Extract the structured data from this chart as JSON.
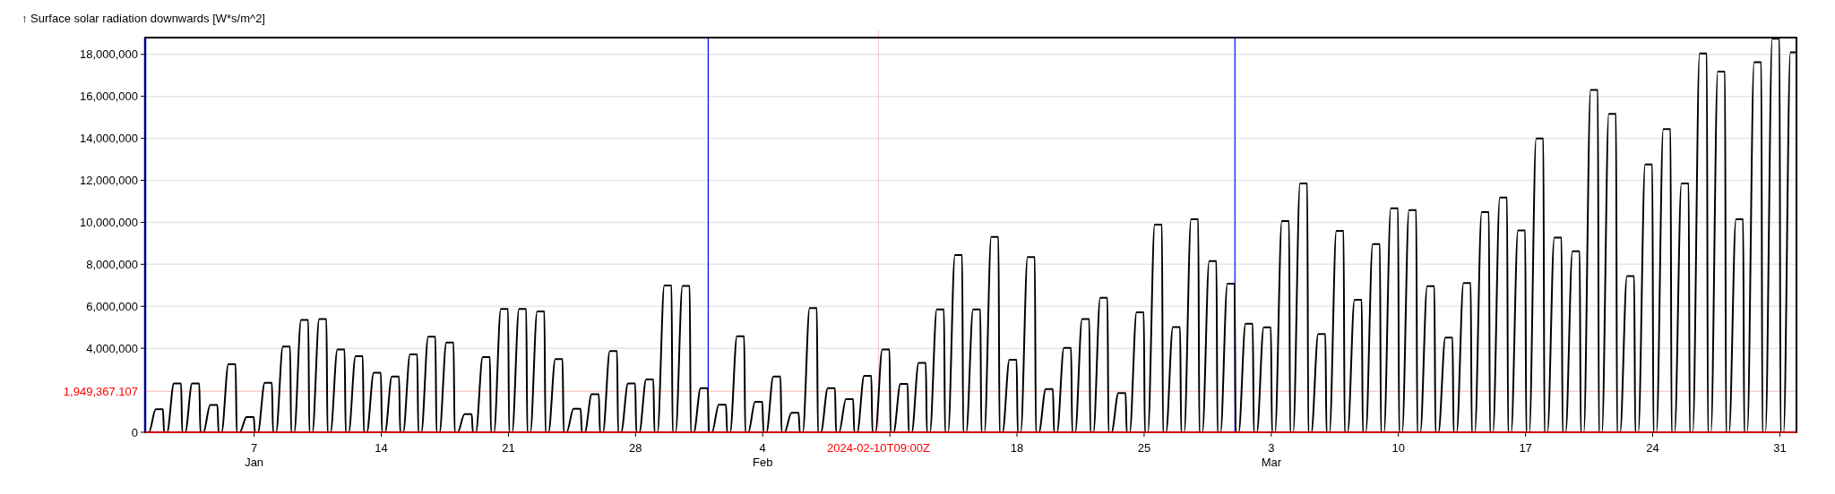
{
  "chart_data": {
    "type": "line",
    "ylabel": "↑ Surface solar radiation downwards [W*s/m^2]",
    "xlim": [
      "2024-01-01T00:00",
      "2024-03-31T22:00"
    ],
    "ylim": [
      0,
      18800000
    ],
    "yticks": [
      {
        "value": 0,
        "label": "0"
      },
      {
        "value": 4000000,
        "label": "4,000,000"
      },
      {
        "value": 6000000,
        "label": "6,000,000"
      },
      {
        "value": 8000000,
        "label": "8,000,000"
      },
      {
        "value": 10000000,
        "label": "10,000,000"
      },
      {
        "value": 12000000,
        "label": "12,000,000"
      },
      {
        "value": 14000000,
        "label": "14,000,000"
      },
      {
        "value": 16000000,
        "label": "16,000,000"
      },
      {
        "value": 18000000,
        "label": "18,000,000"
      }
    ],
    "xticks": [
      {
        "value": "2024-01-07",
        "label": "7\nJan"
      },
      {
        "value": "2024-01-14",
        "label": "14"
      },
      {
        "value": "2024-01-21",
        "label": "21"
      },
      {
        "value": "2024-01-28",
        "label": "28"
      },
      {
        "value": "2024-02-04",
        "label": "4\nFeb"
      },
      {
        "value": "2024-02-11",
        "label": null
      },
      {
        "value": "2024-02-18",
        "label": "18"
      },
      {
        "value": "2024-02-25",
        "label": "25"
      },
      {
        "value": "2024-03-03",
        "label": "3\nMar"
      },
      {
        "value": "2024-03-10",
        "label": "10"
      },
      {
        "value": "2024-03-17",
        "label": "17"
      },
      {
        "value": "2024-03-24",
        "label": "24"
      },
      {
        "value": "2024-03-31",
        "label": "31"
      }
    ],
    "grid": "y",
    "line_style": "solid",
    "marker": "none",
    "ref_lines": [
      {
        "axis": "y",
        "value": 1949367.107,
        "label": "1,949,367.107",
        "color": "#ff0000"
      },
      {
        "axis": "x",
        "value": "2024-02-10T09:00",
        "label": "2024-02-10T09:00Z",
        "color": "#ff0000"
      },
      {
        "axis": "x",
        "value": "2024-02-01",
        "color": "#0000ff"
      },
      {
        "axis": "x",
        "value": "2024-03-01",
        "color": "#0000ff"
      }
    ],
    "series": [
      {
        "color": "#000000",
        "x": [
          "2024-01-01T00:00",
          "2024-01-01T05:00",
          "2024-01-01T14:00",
          "2024-01-01T23:30",
          "2024-01-02T01:00",
          "2024-01-02T05:00",
          "2024-01-02T14:00",
          "2024-01-02T23:30",
          "2024-01-03T01:00",
          "2024-01-03T05:00",
          "2024-01-03T14:00",
          "2024-01-03T23:30",
          "2024-01-04T01:00",
          "2024-01-04T05:00",
          "2024-01-04T14:00",
          "2024-01-04T23:30",
          "2024-01-05T01:00",
          "2024-01-05T05:00",
          "2024-01-05T14:00",
          "2024-01-05T23:30",
          "2024-01-06T01:00",
          "2024-01-06T05:00",
          "2024-01-06T14:00",
          "2024-01-06T23:30",
          "2024-01-07T01:00",
          "2024-01-07T05:00",
          "2024-01-07T14:00",
          "2024-01-07T23:30",
          "2024-01-08T01:00",
          "2024-01-08T05:00",
          "2024-01-08T14:00",
          "2024-01-08T23:30",
          "2024-01-09T01:00",
          "2024-01-09T05:00",
          "2024-01-09T14:00",
          "2024-01-09T23:30",
          "2024-01-10T01:00",
          "2024-01-10T05:00",
          "2024-01-10T14:00",
          "2024-01-10T23:30",
          "2024-01-11T01:00",
          "2024-01-11T05:00",
          "2024-01-11T14:00",
          "2024-01-11T23:30",
          "2024-01-12T01:00",
          "2024-01-12T05:00",
          "2024-01-12T14:00",
          "2024-01-12T23:30",
          "2024-01-13T01:00",
          "2024-01-13T05:00",
          "2024-01-13T14:00",
          "2024-01-13T23:30",
          "2024-01-14T01:00",
          "2024-01-14T05:00",
          "2024-01-14T14:00",
          "2024-01-14T23:30",
          "2024-01-15T01:00",
          "2024-01-15T05:00",
          "2024-01-15T14:00",
          "2024-01-15T23:30",
          "2024-01-16T01:00",
          "2024-01-16T05:00",
          "2024-01-16T14:00",
          "2024-01-16T23:30",
          "2024-01-17T01:00",
          "2024-01-17T05:00",
          "2024-01-17T14:00",
          "2024-01-17T23:30",
          "2024-01-18T01:00",
          "2024-01-18T05:00",
          "2024-01-18T14:00",
          "2024-01-18T23:30",
          "2024-01-19T01:00",
          "2024-01-19T05:00",
          "2024-01-19T14:00",
          "2024-01-19T23:30",
          "2024-01-20T01:00",
          "2024-01-20T05:00",
          "2024-01-20T14:00",
          "2024-01-20T23:30",
          "2024-01-21T01:00",
          "2024-01-21T05:00",
          "2024-01-21T14:00",
          "2024-01-21T23:30",
          "2024-01-22T01:00",
          "2024-01-22T05:00",
          "2024-01-22T14:00",
          "2024-01-22T23:30",
          "2024-01-23T01:00",
          "2024-01-23T05:00",
          "2024-01-23T14:00",
          "2024-01-23T23:30",
          "2024-01-24T01:00",
          "2024-01-24T05:00",
          "2024-01-24T14:00",
          "2024-01-24T23:30",
          "2024-01-25T01:00",
          "2024-01-25T05:00",
          "2024-01-25T14:00",
          "2024-01-25T23:30",
          "2024-01-26T01:00",
          "2024-01-26T05:00",
          "2024-01-26T14:00",
          "2024-01-26T23:30",
          "2024-01-27T01:00",
          "2024-01-27T05:00",
          "2024-01-27T14:00",
          "2024-01-27T23:30",
          "2024-01-28T01:00",
          "2024-01-28T05:00",
          "2024-01-28T14:00",
          "2024-01-28T23:30",
          "2024-01-29T01:00",
          "2024-01-29T05:00",
          "2024-01-29T14:00",
          "2024-01-29T23:30",
          "2024-01-30T01:00",
          "2024-01-30T05:00",
          "2024-01-30T14:00",
          "2024-01-30T23:30",
          "2024-01-31T01:00",
          "2024-01-31T05:00",
          "2024-01-31T14:00",
          "2024-01-31T23:30",
          "2024-02-01T01:00",
          "2024-02-01T05:00",
          "2024-02-01T14:00",
          "2024-02-01T23:30",
          "2024-02-02T01:00",
          "2024-02-02T05:00",
          "2024-02-02T14:00",
          "2024-02-02T23:30",
          "2024-02-03T01:00",
          "2024-02-03T05:00",
          "2024-02-03T14:00",
          "2024-02-03T23:30",
          "2024-02-04T01:00",
          "2024-02-04T05:00",
          "2024-02-04T14:00",
          "2024-02-04T23:30",
          "2024-02-05T01:00",
          "2024-02-05T05:00",
          "2024-02-05T14:00",
          "2024-02-05T23:30",
          "2024-02-06T01:00",
          "2024-02-06T05:00",
          "2024-02-06T14:00",
          "2024-02-06T23:30",
          "2024-02-07T01:00",
          "2024-02-07T05:00",
          "2024-02-07T14:00",
          "2024-02-07T23:30",
          "2024-02-08T01:00",
          "2024-02-08T05:00",
          "2024-02-08T14:00",
          "2024-02-08T23:30",
          "2024-02-09T01:00",
          "2024-02-09T05:00",
          "2024-02-09T14:00",
          "2024-02-09T23:30",
          "2024-02-10T01:00",
          "2024-02-10T05:00",
          "2024-02-10T14:00",
          "2024-02-10T23:30",
          "2024-02-11T01:00",
          "2024-02-11T05:00",
          "2024-02-11T14:00",
          "2024-02-11T23:30",
          "2024-02-12T01:00",
          "2024-02-12T05:00",
          "2024-02-12T14:00",
          "2024-02-12T23:30",
          "2024-02-13T01:00",
          "2024-02-13T05:00",
          "2024-02-13T14:00",
          "2024-02-13T23:30",
          "2024-02-14T01:00",
          "2024-02-14T05:00",
          "2024-02-14T14:00",
          "2024-02-14T23:30",
          "2024-02-15T01:00",
          "2024-02-15T05:00",
          "2024-02-15T14:00",
          "2024-02-15T23:30",
          "2024-02-16T01:00",
          "2024-02-16T05:00",
          "2024-02-16T14:00",
          "2024-02-16T23:30",
          "2024-02-17T01:00",
          "2024-02-17T05:00",
          "2024-02-17T14:00",
          "2024-02-17T23:30",
          "2024-02-18T01:00",
          "2024-02-18T05:00",
          "2024-02-18T14:00",
          "2024-02-18T23:30",
          "2024-02-19T01:00",
          "2024-02-19T05:00",
          "2024-02-19T14:00",
          "2024-02-19T23:30",
          "2024-02-20T01:00",
          "2024-02-20T05:00",
          "2024-02-20T14:00",
          "2024-02-20T23:30",
          "2024-02-21T01:00",
          "2024-02-21T05:00",
          "2024-02-21T14:00",
          "2024-02-21T23:30",
          "2024-02-22T01:00",
          "2024-02-22T05:00",
          "2024-02-22T14:00",
          "2024-02-22T23:30",
          "2024-02-23T01:00",
          "2024-02-23T05:00",
          "2024-02-23T14:00",
          "2024-02-23T23:30",
          "2024-02-24T01:00",
          "2024-02-24T05:00",
          "2024-02-24T14:00",
          "2024-02-24T23:30",
          "2024-02-25T01:00",
          "2024-02-25T05:00",
          "2024-02-25T14:00",
          "2024-02-25T23:30",
          "2024-02-26T01:00",
          "2024-02-26T05:00",
          "2024-02-26T14:00",
          "2024-02-26T23:30",
          "2024-02-27T01:00",
          "2024-02-27T05:00",
          "2024-02-27T14:00",
          "2024-02-27T23:30",
          "2024-02-28T01:00",
          "2024-02-28T05:00",
          "2024-02-28T14:00",
          "2024-02-28T23:30",
          "2024-02-29T01:00",
          "2024-02-29T05:00",
          "2024-02-29T14:00",
          "2024-02-29T23:30",
          "2024-03-01T01:00",
          "2024-03-01T05:00",
          "2024-03-01T14:00",
          "2024-03-01T23:30",
          "2024-03-02T01:00",
          "2024-03-02T05:00",
          "2024-03-02T14:00",
          "2024-03-02T23:30",
          "2024-03-03T01:00",
          "2024-03-03T05:00",
          "2024-03-03T14:00",
          "2024-03-03T23:30",
          "2024-03-04T01:00",
          "2024-03-04T05:00",
          "2024-03-04T14:00",
          "2024-03-04T23:30",
          "2024-03-05T01:00",
          "2024-03-05T05:00",
          "2024-03-05T14:00",
          "2024-03-05T23:30",
          "2024-03-06T01:00",
          "2024-03-06T05:00",
          "2024-03-06T14:00",
          "2024-03-06T23:30",
          "2024-03-07T01:00",
          "2024-03-07T05:00",
          "2024-03-07T14:00",
          "2024-03-07T23:30",
          "2024-03-08T01:00",
          "2024-03-08T05:00",
          "2024-03-08T14:00",
          "2024-03-08T23:30",
          "2024-03-09T01:00",
          "2024-03-09T05:00",
          "2024-03-09T14:00",
          "2024-03-09T23:30",
          "2024-03-10T01:00",
          "2024-03-10T05:00",
          "2024-03-10T14:00",
          "2024-03-10T23:30",
          "2024-03-11T01:00",
          "2024-03-11T05:00",
          "2024-03-11T14:00",
          "2024-03-11T23:30",
          "2024-03-12T01:00",
          "2024-03-12T05:00",
          "2024-03-12T14:00",
          "2024-03-12T23:30",
          "2024-03-13T01:00",
          "2024-03-13T05:00",
          "2024-03-13T14:00",
          "2024-03-13T23:30",
          "2024-03-14T01:00",
          "2024-03-14T05:00",
          "2024-03-14T14:00",
          "2024-03-14T23:30",
          "2024-03-15T01:00",
          "2024-03-15T05:00",
          "2024-03-15T14:00",
          "2024-03-15T23:30",
          "2024-03-16T01:00",
          "2024-03-16T05:00",
          "2024-03-16T14:00",
          "2024-03-16T23:30",
          "2024-03-17T01:00",
          "2024-03-17T05:00",
          "2024-03-17T14:00",
          "2024-03-17T23:30",
          "2024-03-18T01:00",
          "2024-03-18T05:00",
          "2024-03-18T14:00",
          "2024-03-18T23:30",
          "2024-03-19T01:00",
          "2024-03-19T05:00",
          "2024-03-19T14:00",
          "2024-03-19T23:30",
          "2024-03-20T01:00",
          "2024-03-20T05:00",
          "2024-03-20T14:00",
          "2024-03-20T23:30",
          "2024-03-21T01:00",
          "2024-03-21T05:00",
          "2024-03-21T14:00",
          "2024-03-21T23:30",
          "2024-03-22T01:00",
          "2024-03-22T05:00",
          "2024-03-22T14:00",
          "2024-03-22T23:30",
          "2024-03-23T01:00",
          "2024-03-23T05:00",
          "2024-03-23T14:00",
          "2024-03-23T23:30",
          "2024-03-24T01:00",
          "2024-03-24T05:00",
          "2024-03-24T14:00",
          "2024-03-24T23:30",
          "2024-03-25T01:00",
          "2024-03-25T05:00",
          "2024-03-25T14:00",
          "2024-03-25T23:30",
          "2024-03-26T01:00",
          "2024-03-26T05:00",
          "2024-03-26T14:00",
          "2024-03-26T23:30",
          "2024-03-27T01:00",
          "2024-03-27T05:00",
          "2024-03-27T14:00",
          "2024-03-27T23:30",
          "2024-03-28T01:00",
          "2024-03-28T05:00",
          "2024-03-28T14:00",
          "2024-03-28T23:30",
          "2024-03-29T01:00",
          "2024-03-29T05:00",
          "2024-03-29T14:00",
          "2024-03-29T23:30",
          "2024-03-30T01:00",
          "2024-03-30T05:00",
          "2024-03-30T14:00",
          "2024-03-30T23:30",
          "2024-03-31T01:00",
          "2024-03-31T05:00",
          "2024-03-31T14:00",
          "2024-03-31T22:00"
        ],
        "values": [
          0,
          0,
          1100000,
          1100000,
          0,
          0,
          2320000,
          2320000,
          0,
          0,
          2320000,
          2320000,
          0,
          0,
          1300000,
          1300000,
          0,
          0,
          3240000,
          3240000,
          0,
          0,
          720000,
          720000,
          0,
          0,
          2360000,
          2360000,
          0,
          0,
          4080000,
          4080000,
          0,
          0,
          5350000,
          5350000,
          0,
          0,
          5390000,
          5390000,
          0,
          0,
          3940000,
          3940000,
          0,
          0,
          3620000,
          3620000,
          0,
          0,
          2840000,
          2840000,
          0,
          0,
          2650000,
          2650000,
          0,
          0,
          3710000,
          3710000,
          0,
          0,
          4550000,
          4550000,
          0,
          0,
          4270000,
          4270000,
          0,
          0,
          860000,
          860000,
          0,
          0,
          3580000,
          3580000,
          0,
          0,
          5870000,
          5870000,
          0,
          0,
          5870000,
          5870000,
          0,
          0,
          5750000,
          5750000,
          0,
          0,
          3490000,
          3490000,
          0,
          0,
          1120000,
          1120000,
          0,
          0,
          1810000,
          1810000,
          0,
          0,
          3870000,
          3870000,
          0,
          0,
          2320000,
          2320000,
          0,
          0,
          2510000,
          2510000,
          0,
          0,
          6990000,
          6990000,
          0,
          0,
          6970000,
          6970000,
          0,
          0,
          2100000,
          2100000,
          0,
          0,
          1310000,
          1310000,
          0,
          0,
          4570000,
          4570000,
          0,
          0,
          1450000,
          1450000,
          0,
          0,
          2650000,
          2650000,
          0,
          0,
          930000,
          930000,
          0,
          0,
          5920000,
          5920000,
          0,
          0,
          2100000,
          2100000,
          0,
          0,
          1580000,
          1580000,
          0,
          0,
          2690000,
          2690000,
          0,
          0,
          3940000,
          3940000,
          0,
          0,
          2300000,
          2300000,
          0,
          0,
          3300000,
          3300000,
          0,
          0,
          5850000,
          5850000,
          0,
          0,
          8440000,
          8440000,
          0,
          0,
          5850000,
          5850000,
          0,
          0,
          9300000,
          9300000,
          0,
          0,
          3450000,
          3450000,
          0,
          0,
          8340000,
          8340000,
          0,
          0,
          2060000,
          2060000,
          0,
          0,
          4020000,
          4020000,
          0,
          0,
          5390000,
          5390000,
          0,
          0,
          6400000,
          6400000,
          0,
          0,
          1870000,
          1870000,
          0,
          0,
          5710000,
          5710000,
          0,
          0,
          9890000,
          9890000,
          0,
          0,
          5010000,
          5010000,
          0,
          0,
          10150000,
          10150000,
          0,
          0,
          8150000,
          8150000,
          0,
          0,
          7080000,
          7080000,
          0,
          0,
          5170000,
          5170000,
          0,
          0,
          5000000,
          5000000,
          0,
          0,
          10060000,
          10060000,
          0,
          0,
          11850000,
          11850000,
          0,
          0,
          4680000,
          4680000,
          0,
          0,
          9590000,
          9590000,
          0,
          0,
          6310000,
          6310000,
          0,
          0,
          8960000,
          8960000,
          0,
          0,
          10670000,
          10670000,
          0,
          0,
          10580000,
          10580000,
          0,
          0,
          6960000,
          6960000,
          0,
          0,
          4510000,
          4510000,
          0,
          0,
          7110000,
          7110000,
          0,
          0,
          10490000,
          10490000,
          0,
          0,
          11180000,
          11180000,
          0,
          0,
          9610000,
          9610000,
          0,
          0,
          13990000,
          13990000,
          0,
          0,
          9270000,
          9270000,
          0,
          0,
          8620000,
          8620000,
          0,
          0,
          16310000,
          16310000,
          0,
          0,
          15170000,
          15170000,
          0,
          0,
          7440000,
          7440000,
          0,
          0,
          12760000,
          12760000,
          0,
          0,
          14440000,
          14440000,
          0,
          0,
          11850000,
          11850000,
          0,
          0,
          18040000,
          18040000,
          0,
          0,
          17180000,
          17180000,
          0,
          0,
          10150000,
          10150000,
          0,
          0,
          17630000,
          17630000,
          0,
          0,
          18750000,
          18750000,
          0,
          0,
          18100000,
          18100000
        ]
      }
    ]
  }
}
